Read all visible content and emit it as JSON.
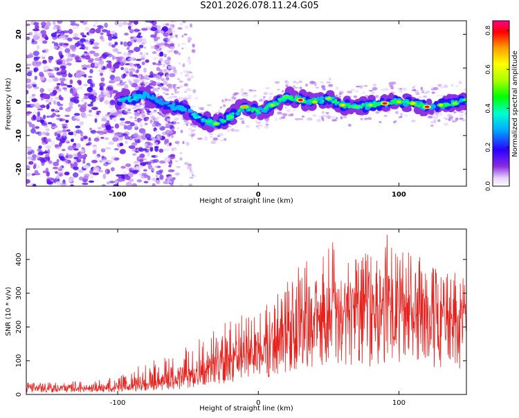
{
  "figure_title": "S201.2026.078.11.24.G05",
  "chart_data": [
    {
      "type": "heatmap",
      "title": "",
      "xlabel": "Height of straight line (km)",
      "ylabel": "Frequency (Hz)",
      "xlim": [
        -165,
        148
      ],
      "ylim": [
        -25,
        24
      ],
      "xticks": [
        -100,
        0,
        100
      ],
      "yticks": [
        -20,
        -10,
        0,
        10,
        20
      ],
      "colorbar": {
        "label": "Normalized spectral amplitude",
        "range": [
          0.0,
          0.85
        ],
        "ticks": [
          0.0,
          0.2,
          0.4,
          0.6,
          0.8
        ],
        "tick_labels": [
          "0.0",
          "0.2",
          "0.4",
          "0.6",
          "0.8"
        ]
      },
      "ridge": {
        "description": "main spectral ridge frequency vs height",
        "x": [
          -100,
          -90,
          -80,
          -70,
          -60,
          -50,
          -40,
          -30,
          -20,
          -10,
          0,
          10,
          20,
          30,
          40,
          50,
          60,
          70,
          80,
          90,
          100,
          110,
          120,
          130,
          140,
          148
        ],
        "y": [
          0.5,
          1.0,
          2.0,
          0.0,
          -1.5,
          -2.5,
          -5.5,
          -6.5,
          -4.5,
          -1.5,
          -3.0,
          -1.0,
          1.5,
          0.5,
          0.0,
          1.0,
          -1.0,
          -1.5,
          -1.0,
          -0.5,
          0.0,
          -0.5,
          -1.5,
          -1.0,
          -0.5,
          0.5
        ],
        "peak_amplitude": [
          0.3,
          0.35,
          0.3,
          0.28,
          0.3,
          0.32,
          0.4,
          0.55,
          0.5,
          0.7,
          0.4,
          0.55,
          0.5,
          0.8,
          0.6,
          0.55,
          0.65,
          0.5,
          0.55,
          0.8,
          0.6,
          0.65,
          0.8,
          0.6,
          0.55,
          0.5
        ]
      }
    },
    {
      "type": "line",
      "title": "",
      "xlabel": "Height of straight line (km)",
      "ylabel": "SNR (10 * v/v)",
      "xlim": [
        -165,
        148
      ],
      "ylim": [
        0,
        490
      ],
      "xticks": [
        -100,
        0,
        100
      ],
      "yticks": [
        0,
        100,
        200,
        300,
        400
      ],
      "color": "#e8201c",
      "series": [
        {
          "name": "SNR",
          "envelope_x": [
            -165,
            -120,
            -100,
            -80,
            -60,
            -50,
            -40,
            -20,
            0,
            10,
            20,
            30,
            40,
            50,
            60,
            70,
            80,
            90,
            100,
            120,
            148
          ],
          "mean": [
            18,
            18,
            20,
            28,
            38,
            48,
            70,
            100,
            130,
            150,
            180,
            210,
            230,
            235,
            240,
            245,
            230,
            250,
            235,
            220,
            215
          ],
          "peak": [
            35,
            40,
            55,
            95,
            115,
            145,
            170,
            225,
            265,
            290,
            335,
            405,
            450,
            460,
            440,
            420,
            420,
            490,
            435,
            400,
            345
          ]
        }
      ]
    }
  ]
}
